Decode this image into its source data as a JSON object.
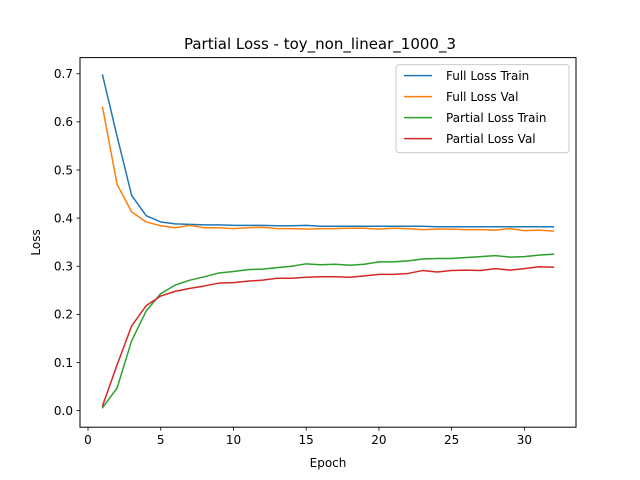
{
  "chart_data": {
    "type": "line",
    "title": "Partial Loss - toy_non_linear_1000_3",
    "xlabel": "Epoch",
    "ylabel": "Loss",
    "xlim": [
      -0.55,
      33.55
    ],
    "ylim": [
      -0.0345,
      0.7335
    ],
    "xticks": [
      0,
      5,
      10,
      15,
      20,
      25,
      30
    ],
    "yticks": [
      0.0,
      0.1,
      0.2,
      0.3,
      0.4,
      0.5,
      0.6,
      0.7
    ],
    "ytick_labels": [
      "0.0",
      "0.1",
      "0.2",
      "0.3",
      "0.4",
      "0.5",
      "0.6",
      "0.7"
    ],
    "grid": false,
    "legend_position": "top-right",
    "x": [
      1,
      2,
      3,
      4,
      5,
      6,
      7,
      8,
      9,
      10,
      11,
      12,
      13,
      14,
      15,
      16,
      17,
      18,
      19,
      20,
      21,
      22,
      23,
      24,
      25,
      26,
      27,
      28,
      29,
      30,
      31,
      32
    ],
    "series": [
      {
        "name": "Full Loss Train",
        "color": "#1f77b4",
        "values": [
          0.697,
          0.57,
          0.447,
          0.405,
          0.392,
          0.388,
          0.387,
          0.386,
          0.386,
          0.385,
          0.385,
          0.385,
          0.384,
          0.384,
          0.385,
          0.383,
          0.383,
          0.383,
          0.383,
          0.383,
          0.383,
          0.383,
          0.383,
          0.382,
          0.382,
          0.382,
          0.382,
          0.382,
          0.382,
          0.382,
          0.382,
          0.382
        ]
      },
      {
        "name": "Full Loss Val",
        "color": "#ff7f0e",
        "values": [
          0.63,
          0.47,
          0.413,
          0.392,
          0.384,
          0.38,
          0.385,
          0.38,
          0.38,
          0.378,
          0.38,
          0.381,
          0.378,
          0.378,
          0.377,
          0.378,
          0.378,
          0.379,
          0.379,
          0.377,
          0.379,
          0.378,
          0.376,
          0.377,
          0.377,
          0.376,
          0.376,
          0.375,
          0.378,
          0.374,
          0.375,
          0.373
        ]
      },
      {
        "name": "Partial Loss Train",
        "color": "#2ca02c",
        "values": [
          0.006,
          0.047,
          0.145,
          0.207,
          0.243,
          0.261,
          0.271,
          0.278,
          0.286,
          0.289,
          0.293,
          0.294,
          0.297,
          0.3,
          0.305,
          0.303,
          0.304,
          0.302,
          0.304,
          0.309,
          0.309,
          0.311,
          0.315,
          0.316,
          0.316,
          0.318,
          0.32,
          0.322,
          0.319,
          0.32,
          0.323,
          0.325
        ]
      },
      {
        "name": "Partial Loss Val",
        "color": "#d62728",
        "values": [
          0.01,
          0.095,
          0.176,
          0.218,
          0.238,
          0.248,
          0.254,
          0.259,
          0.265,
          0.266,
          0.269,
          0.271,
          0.275,
          0.275,
          0.277,
          0.278,
          0.278,
          0.277,
          0.28,
          0.283,
          0.283,
          0.285,
          0.291,
          0.288,
          0.291,
          0.292,
          0.291,
          0.295,
          0.292,
          0.295,
          0.299,
          0.298
        ]
      }
    ]
  }
}
